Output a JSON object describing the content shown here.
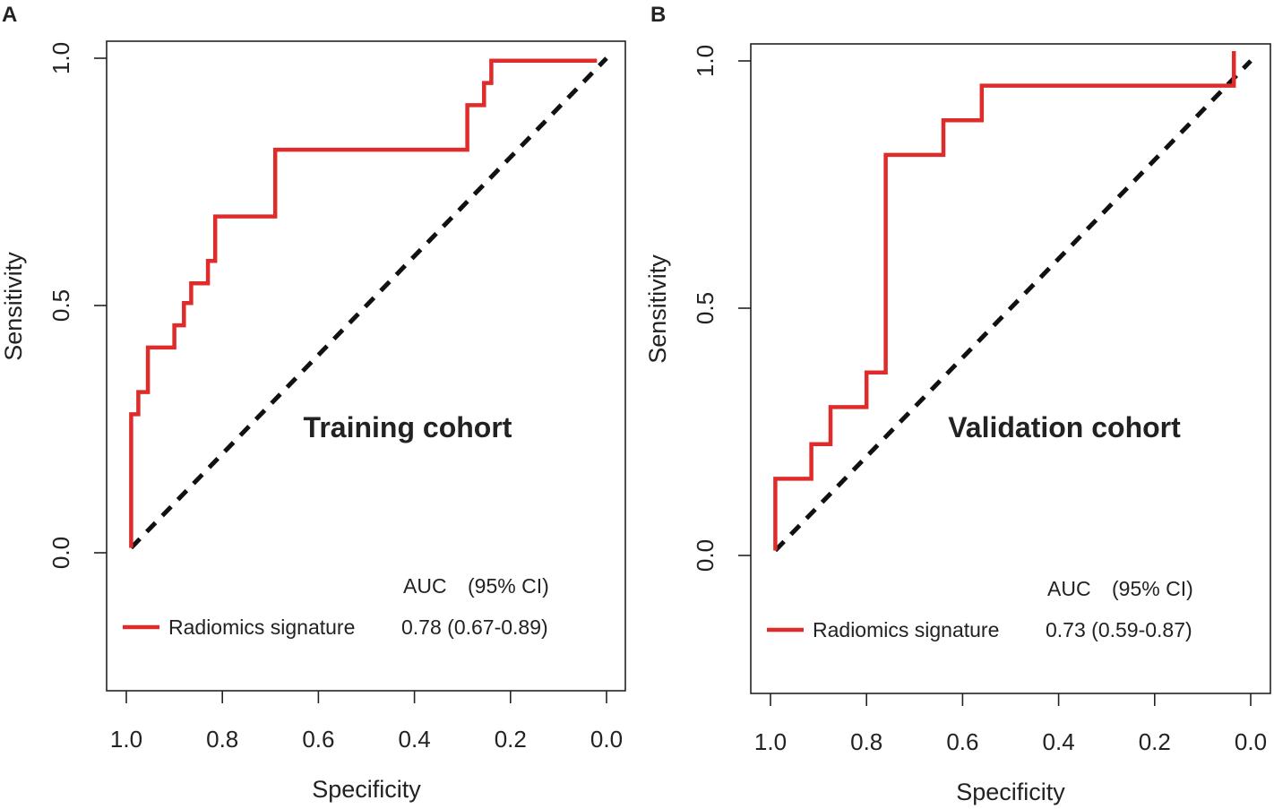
{
  "chart_data": [
    {
      "type": "line",
      "panel_label": "A",
      "title": "Training cohort",
      "xlabel": "Specificity",
      "ylabel": "Sensitivity",
      "xlim": [
        1.0,
        0.0
      ],
      "ylim": [
        -0.28,
        1.03
      ],
      "xticks": [
        1.0,
        0.8,
        0.6,
        0.4,
        0.2,
        0.0
      ],
      "xtick_labels": [
        "1.0",
        "0.8",
        "0.6",
        "0.4",
        "0.2",
        "0.0"
      ],
      "yticks": [
        0.0,
        0.5,
        1.0
      ],
      "ytick_labels": [
        "0.0",
        "0.5",
        "1.0"
      ],
      "roc": {
        "name": "Radiomics signature",
        "color": "#e02b2b",
        "specificity": [
          0.99,
          0.99,
          0.975,
          0.975,
          0.955,
          0.955,
          0.9,
          0.9,
          0.88,
          0.88,
          0.865,
          0.865,
          0.83,
          0.83,
          0.815,
          0.815,
          0.69,
          0.69,
          0.29,
          0.29,
          0.255,
          0.255,
          0.24,
          0.24,
          0.02
        ],
        "sensitivity": [
          0.01,
          0.28,
          0.28,
          0.325,
          0.325,
          0.415,
          0.415,
          0.46,
          0.46,
          0.505,
          0.505,
          0.545,
          0.545,
          0.59,
          0.59,
          0.68,
          0.68,
          0.815,
          0.815,
          0.905,
          0.905,
          0.95,
          0.95,
          0.995,
          0.995
        ]
      },
      "reference_line": {
        "from": [
          0.99,
          0.01
        ],
        "to": [
          0.0,
          1.0
        ],
        "color": "#111111"
      },
      "legend": {
        "header_auc": "AUC",
        "header_ci": "(95% CI)",
        "entries": [
          {
            "label": "Radiomics signature",
            "value": "0.78 (0.67-0.89)",
            "color": "#e02b2b"
          }
        ]
      }
    },
    {
      "type": "line",
      "panel_label": "B",
      "title": "Validation cohort",
      "xlabel": "Specificity",
      "ylabel": "Sensitivity",
      "xlim": [
        1.0,
        0.0
      ],
      "ylim": [
        -0.28,
        1.03
      ],
      "xticks": [
        1.0,
        0.8,
        0.6,
        0.4,
        0.2,
        0.0
      ],
      "xtick_labels": [
        "1.0",
        "0.8",
        "0.6",
        "0.4",
        "0.2",
        "0.0"
      ],
      "yticks": [
        0.0,
        0.5,
        1.0
      ],
      "ytick_labels": [
        "0.0",
        "0.5",
        "1.0"
      ],
      "roc": {
        "name": "Radiomics signature",
        "color": "#e02b2b",
        "specificity": [
          0.99,
          0.99,
          0.915,
          0.915,
          0.875,
          0.875,
          0.8,
          0.8,
          0.76,
          0.76,
          0.64,
          0.64,
          0.56,
          0.56,
          0.035,
          0.035
        ],
        "sensitivity": [
          0.01,
          0.155,
          0.155,
          0.225,
          0.225,
          0.3,
          0.3,
          0.37,
          0.37,
          0.81,
          0.81,
          0.88,
          0.88,
          0.95,
          0.95,
          1.02
        ]
      },
      "reference_line": {
        "from": [
          0.99,
          0.01
        ],
        "to": [
          0.0,
          1.0
        ],
        "color": "#111111"
      },
      "legend": {
        "header_auc": "AUC",
        "header_ci": "(95% CI)",
        "entries": [
          {
            "label": "Radiomics signature",
            "value": "0.73 (0.59-0.87)",
            "color": "#e02b2b"
          }
        ]
      }
    }
  ]
}
